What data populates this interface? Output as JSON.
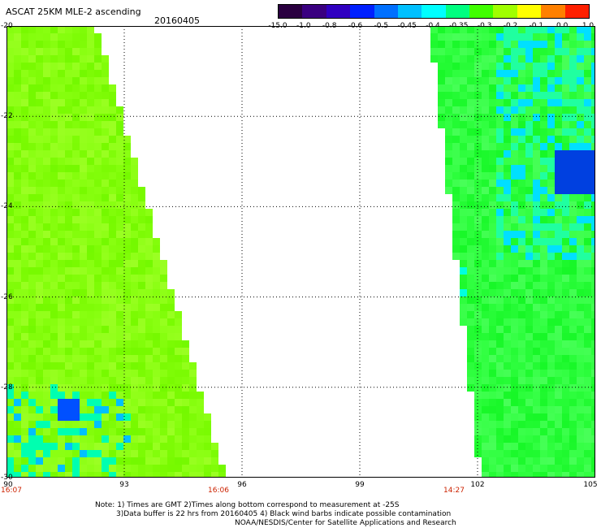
{
  "title": "ASCAT 25KM MLE-2 ascending",
  "date": "20160405",
  "colorbar": {
    "tick_labels": [
      "-15.0",
      "-1.0",
      "-0.8",
      "-0.6",
      "-0.5",
      "-0.45",
      "-0.4",
      "-0.35",
      "-0.3",
      "-0.2",
      "-0.1",
      "0.0",
      "1.0"
    ],
    "colors": [
      "#2a0040",
      "#3a0080",
      "#3000c0",
      "#0020ff",
      "#0070ff",
      "#00c0ff",
      "#00ffff",
      "#00ff80",
      "#40ff00",
      "#a0ff00",
      "#ffff00",
      "#ff8000",
      "#ff2000"
    ]
  },
  "axes": {
    "lon_labels": [
      "90",
      "93",
      "96",
      "99",
      "102",
      "105"
    ],
    "lat_labels": [
      "-20",
      "-22",
      "-24",
      "-26",
      "-28",
      "-30"
    ],
    "lon_range": [
      90,
      105
    ],
    "lat_range": [
      -20,
      -30
    ],
    "grid": "dotted"
  },
  "time_labels": [
    {
      "text": "16:07",
      "lon": 90
    },
    {
      "text": "16:06",
      "lon": 95.4
    },
    {
      "text": "14:27",
      "lon": 101.4
    }
  ],
  "swaths": [
    {
      "name": "west",
      "edge_lon_top": 92.4,
      "edge_lon_bottom": 95.7,
      "base_color": "#88ff10"
    },
    {
      "name": "east",
      "edge_lon_top": 100.7,
      "edge_lon_bottom": 102.0,
      "base_color": "#30ff40"
    }
  ],
  "notes": {
    "line1": "Note: 1) Times are GMT 2)Times along bottom correspond to measurement at -25S",
    "line2": "3)Data buffer is 22 hrs from 20160405 4) Black wind barbs indicate possible contamination",
    "line3": "NOAA/NESDIS/Center for Satellite Applications and Research"
  }
}
